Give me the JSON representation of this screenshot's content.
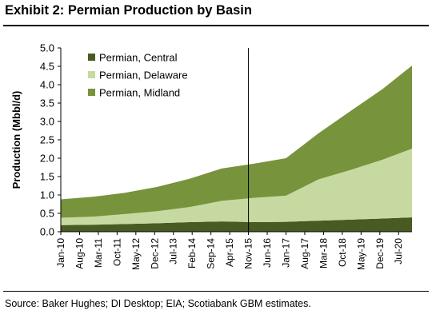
{
  "header": {
    "title": "Exhibit 2: Permian Production by Basin"
  },
  "footer": {
    "source": "Source: Baker Hughes; DI Desktop; EIA; Scotiabank GBM estimates."
  },
  "chart_data": {
    "type": "area",
    "stacked": true,
    "title": "Exhibit 2: Permian Production by Basin",
    "xlabel": "",
    "ylabel": "Production (Mbbl/d)",
    "ylim": [
      0,
      5.0
    ],
    "yticks": [
      "0.0",
      "0.5",
      "1.0",
      "1.5",
      "2.0",
      "2.5",
      "3.0",
      "3.5",
      "4.0",
      "4.5",
      "5.0"
    ],
    "xticks": [
      "Jan-10",
      "Aug-10",
      "Mar-11",
      "Oct-11",
      "May-12",
      "Dec-12",
      "Jul-13",
      "Feb-14",
      "Sep-14",
      "Apr-15",
      "Nov-15",
      "Jun-16",
      "Jan-17",
      "Aug-17",
      "Mar-18",
      "Oct-18",
      "May-19",
      "Dec-19",
      "Jul-20"
    ],
    "x_anchor_dates": [
      "Jan-10",
      "Jan-11",
      "Jan-12",
      "Jan-13",
      "Jan-14",
      "Jan-15",
      "Jan-16",
      "Jan-17",
      "Jan-18",
      "Jan-19",
      "Jan-20",
      "Dec-20"
    ],
    "series": [
      {
        "name": "Permian, Central",
        "color": "#4a5a23",
        "values": [
          0.18,
          0.19,
          0.21,
          0.23,
          0.26,
          0.28,
          0.26,
          0.27,
          0.3,
          0.33,
          0.36,
          0.39
        ]
      },
      {
        "name": "Permian, Delaware",
        "color": "#c6d9a0",
        "values": [
          0.2,
          0.22,
          0.27,
          0.33,
          0.41,
          0.56,
          0.66,
          0.71,
          1.12,
          1.35,
          1.6,
          1.87
        ]
      },
      {
        "name": "Permian, Midland",
        "color": "#77933c",
        "values": [
          0.5,
          0.54,
          0.58,
          0.66,
          0.77,
          0.88,
          0.93,
          1.02,
          1.25,
          1.6,
          1.92,
          2.26
        ]
      }
    ],
    "annotations": [
      {
        "type": "vertical-line",
        "x": "Nov-15"
      }
    ],
    "legend_position": "top-left"
  }
}
